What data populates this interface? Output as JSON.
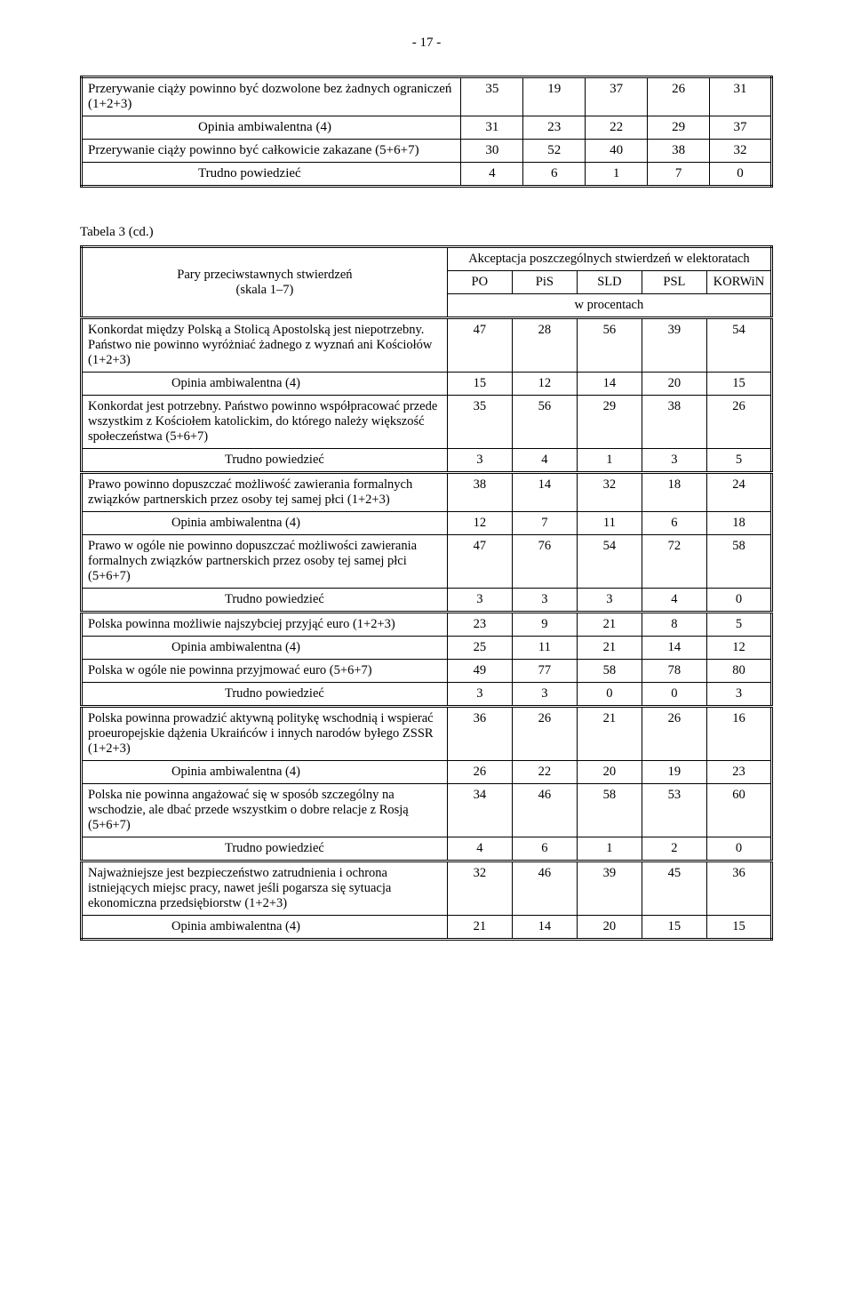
{
  "pageNumber": "- 17 -",
  "table1": {
    "rows": [
      {
        "label": "Przerywanie ciąży powinno być dozwolone bez żadnych ograniczeń (1+2+3)",
        "vals": [
          "35",
          "19",
          "37",
          "26",
          "31"
        ],
        "cls": ""
      },
      {
        "label": "Opinia ambiwalentna (4)",
        "vals": [
          "31",
          "23",
          "22",
          "29",
          "37"
        ],
        "cls": "indent"
      },
      {
        "label": "Przerywanie ciąży powinno być całkowicie zakazane (5+6+7)",
        "vals": [
          "30",
          "52",
          "40",
          "38",
          "32"
        ],
        "cls": ""
      },
      {
        "label": "Trudno powiedzieć",
        "vals": [
          "4",
          "6",
          "1",
          "7",
          "0"
        ],
        "cls": "indent"
      }
    ]
  },
  "caption": "Tabela 3 (cd.)",
  "table2": {
    "headerLeft1": "Pary przeciwstawnych stwierdzeń",
    "headerLeft2": "(skala 1–7)",
    "headerTop": "Akceptacja poszczególnych stwierdzeń w elektoratach",
    "parties": [
      "PO",
      "PiS",
      "SLD",
      "PSL",
      "KORWiN"
    ],
    "wproc": "w procentach",
    "rows": [
      {
        "label": "Konkordat między Polską a Stolicą Apostolską jest niepotrzebny. Państwo nie powinno wyróżniać żadnego z wyznań ani Kościołów (1+2+3)",
        "vals": [
          "47",
          "28",
          "56",
          "39",
          "54"
        ],
        "cls": "lbl",
        "group": true
      },
      {
        "label": "Opinia ambiwalentna (4)",
        "vals": [
          "15",
          "12",
          "14",
          "20",
          "15"
        ],
        "cls": "indent2"
      },
      {
        "label": "Konkordat jest potrzebny. Państwo powinno współpracować przede wszystkim z Kościołem katolickim, do którego należy większość społeczeństwa (5+6+7)",
        "vals": [
          "35",
          "56",
          "29",
          "38",
          "26"
        ],
        "cls": "lbl"
      },
      {
        "label": "Trudno powiedzieć",
        "vals": [
          "3",
          "4",
          "1",
          "3",
          "5"
        ],
        "cls": "indent3"
      },
      {
        "label": "Prawo powinno dopuszczać możliwość zawierania formalnych związków partnerskich przez osoby tej samej płci (1+2+3)",
        "vals": [
          "38",
          "14",
          "32",
          "18",
          "24"
        ],
        "cls": "lbl",
        "group": true
      },
      {
        "label": "Opinia ambiwalentna (4)",
        "vals": [
          "12",
          "7",
          "11",
          "6",
          "18"
        ],
        "cls": "indent2"
      },
      {
        "label": "Prawo w ogóle nie powinno dopuszczać możliwości zawierania formalnych związków partnerskich przez osoby tej samej płci (5+6+7)",
        "vals": [
          "47",
          "76",
          "54",
          "72",
          "58"
        ],
        "cls": "lbl"
      },
      {
        "label": "Trudno powiedzieć",
        "vals": [
          "3",
          "3",
          "3",
          "4",
          "0"
        ],
        "cls": "indent3"
      },
      {
        "label": "Polska powinna możliwie najszybciej przyjąć euro (1+2+3)",
        "vals": [
          "23",
          "9",
          "21",
          "8",
          "5"
        ],
        "cls": "lbl",
        "group": true
      },
      {
        "label": "Opinia ambiwalentna (4)",
        "vals": [
          "25",
          "11",
          "21",
          "14",
          "12"
        ],
        "cls": "indent2"
      },
      {
        "label": "Polska w ogóle nie powinna przyjmować euro (5+6+7)",
        "vals": [
          "49",
          "77",
          "58",
          "78",
          "80"
        ],
        "cls": "lbl"
      },
      {
        "label": "Trudno powiedzieć",
        "vals": [
          "3",
          "3",
          "0",
          "0",
          "3"
        ],
        "cls": "indent3"
      },
      {
        "label": "Polska powinna prowadzić aktywną politykę wschodnią i wspierać proeuropejskie dążenia Ukraińców i innych narodów byłego ZSSR (1+2+3)",
        "vals": [
          "36",
          "26",
          "21",
          "26",
          "16"
        ],
        "cls": "lbl",
        "group": true
      },
      {
        "label": "Opinia ambiwalentna (4)",
        "vals": [
          "26",
          "22",
          "20",
          "19",
          "23"
        ],
        "cls": "indent2"
      },
      {
        "label": "Polska nie powinna angażować się w sposób szczególny na wschodzie, ale dbać przede wszystkim o dobre relacje z Rosją (5+6+7)",
        "vals": [
          "34",
          "46",
          "58",
          "53",
          "60"
        ],
        "cls": "lbl"
      },
      {
        "label": "Trudno powiedzieć",
        "vals": [
          "4",
          "6",
          "1",
          "2",
          "0"
        ],
        "cls": "indent3"
      },
      {
        "label": "Najważniejsze jest bezpieczeństwo zatrudnienia i ochrona istniejących miejsc pracy, nawet jeśli pogarsza się sytuacja ekonomiczna przedsiębiorstw (1+2+3)",
        "vals": [
          "32",
          "46",
          "39",
          "45",
          "36"
        ],
        "cls": "lbl",
        "group": true
      },
      {
        "label": "Opinia ambiwalentna (4)",
        "vals": [
          "21",
          "14",
          "20",
          "15",
          "15"
        ],
        "cls": "indent2"
      }
    ]
  }
}
